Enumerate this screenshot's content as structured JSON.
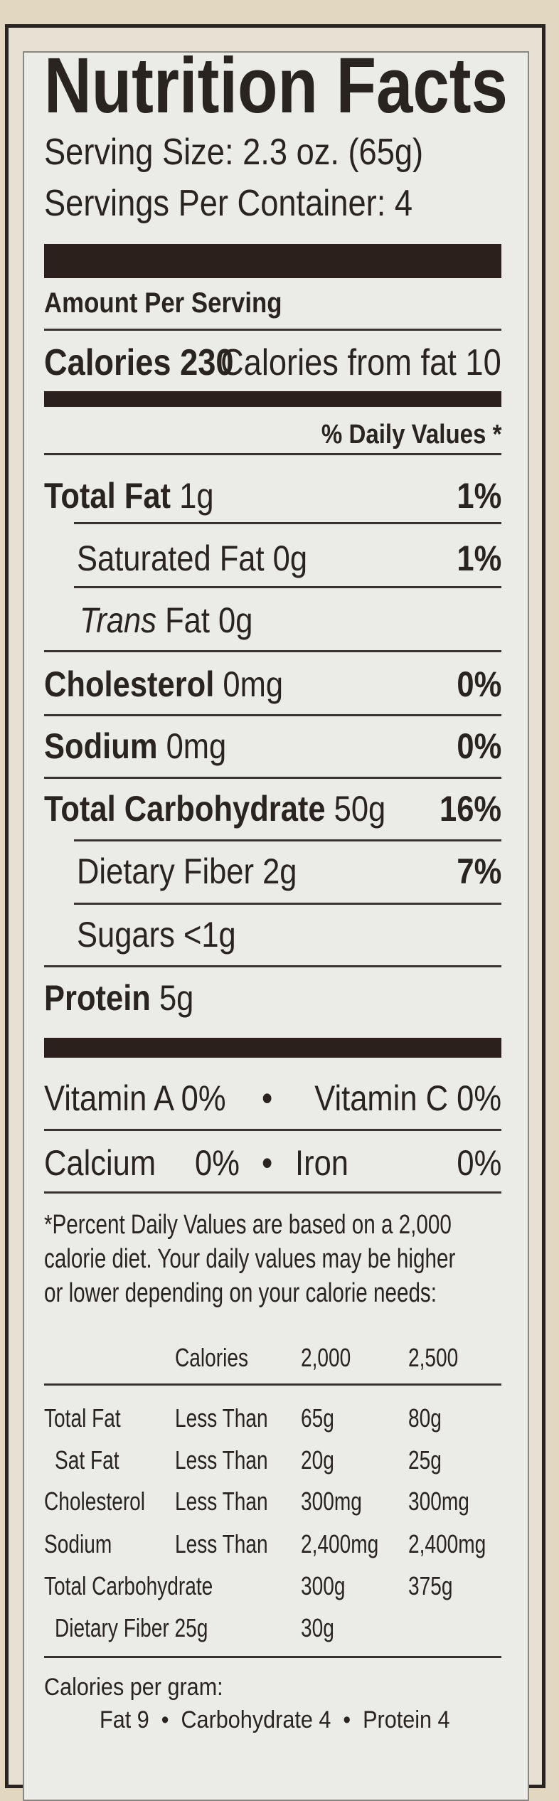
{
  "label": {
    "title": "Nutrition Facts",
    "serving_size": "Serving Size: 2.3 oz. (65g)",
    "servings_per_container": "Servings Per Container: 4",
    "amount_per_serving": "Amount Per Serving",
    "calories": {
      "label": "Calories",
      "value": "230",
      "from_fat": "Calories from fat 10"
    },
    "daily_values_header": "% Daily Values *",
    "nutrients": [
      {
        "name": "Total Fat",
        "amount": "1g",
        "dv": "1%",
        "bold": true
      },
      {
        "name": "Saturated Fat",
        "amount": "0g",
        "dv": "1%"
      },
      {
        "name": "Trans",
        "name_rest": "Fat",
        "amount": "0g",
        "dv": ""
      },
      {
        "name": "Cholesterol",
        "amount": "0mg",
        "dv": "0%",
        "bold": true
      },
      {
        "name": "Sodium",
        "amount": "0mg",
        "dv": "0%",
        "bold": true
      },
      {
        "name": "Total Carbohydrate",
        "amount": "50g",
        "dv": "16%",
        "bold": true
      },
      {
        "name": "Dietary Fiber",
        "amount": "2g",
        "dv": "7%"
      },
      {
        "name": "Sugars",
        "amount": "<1g",
        "dv": ""
      },
      {
        "name": "Protein",
        "amount": "5g",
        "dv": "",
        "bold": true
      }
    ],
    "vitamins": [
      {
        "a_name": "Vitamin A",
        "a_value": "0%",
        "separator": "•",
        "b_name": "Vitamin C",
        "b_value": "0%"
      },
      {
        "a_name": "Calcium",
        "a_value": "0%",
        "separator": "•",
        "b_name": "Iron",
        "b_value": "0%"
      }
    ],
    "footnote": [
      "*Percent Daily Values are based on a  2,000",
      "calorie diet. Your daily values may be higher",
      "or lower depending on your calorie needs:"
    ],
    "dv_table": {
      "header": [
        "",
        "Calories",
        "2,000",
        "2,500"
      ],
      "rows": [
        [
          "Total Fat",
          "Less Than",
          "65g",
          "80g"
        ],
        [
          "Sat Fat",
          "Less Than",
          "20g",
          "25g"
        ],
        [
          "Cholesterol",
          "Less Than",
          "300mg",
          "300mg"
        ],
        [
          "Sodium",
          "Less Than",
          "2,400mg",
          "2,400mg"
        ],
        [
          "Total Carbohydrate",
          "",
          "300g",
          "375g"
        ],
        [
          "Dietary Fiber 25g",
          "",
          "30g",
          ""
        ]
      ]
    },
    "calories_per_gram": {
      "label": "Calories per gram:",
      "values": "Fat 9  •  Carbohydrate 4  •  Protein 4"
    }
  },
  "colors": {
    "ink": "#2a2420",
    "panel": "#ebebe7",
    "background": "#e2d7c0"
  }
}
